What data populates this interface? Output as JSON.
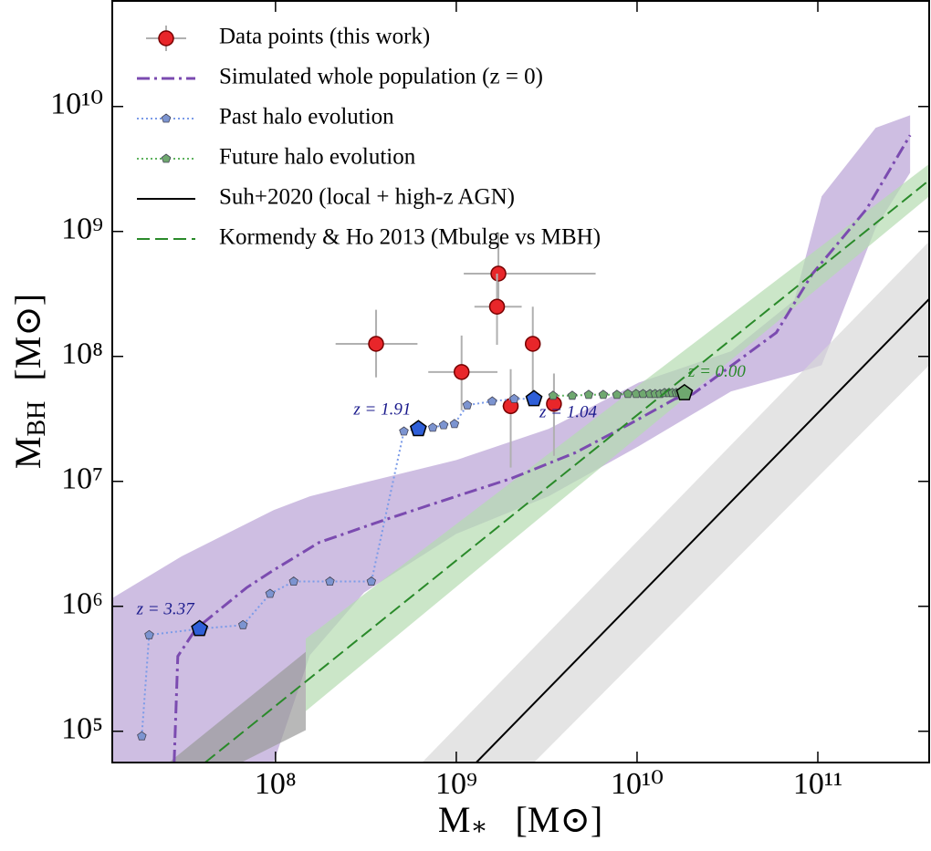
{
  "chart_data": {
    "type": "scatter",
    "xscale": "log",
    "yscale": "log",
    "xlabel": [
      "M",
      "∗",
      "[M⊙]"
    ],
    "ylabel": [
      "M",
      "BH",
      "[M⊙]"
    ],
    "xlim": [
      12500000.0,
      413000000000.0
    ],
    "ylim": [
      56200.0,
      70000000000.0
    ],
    "xticks": [
      {
        "value": 100000000.0,
        "label": "10⁸"
      },
      {
        "value": 1000000000.0,
        "label": "10⁹"
      },
      {
        "value": 10000000000.0,
        "label": "10¹⁰"
      },
      {
        "value": 100000000000.0,
        "label": "10¹¹"
      }
    ],
    "yticks": [
      {
        "value": 100000.0,
        "label": "10⁵"
      },
      {
        "value": 1000000.0,
        "label": "10⁶"
      },
      {
        "value": 10000000.0,
        "label": "10⁷"
      },
      {
        "value": 100000000.0,
        "label": "10⁸"
      },
      {
        "value": 1000000000.0,
        "label": "10⁹"
      },
      {
        "value": 10000000000.0,
        "label": "10¹⁰"
      }
    ],
    "legend": "upper left",
    "series": [
      {
        "name": "Data points (this work)",
        "kind": "errorbar",
        "color": "#e8262a",
        "error_color": "#b0b0b0",
        "x": [
          360000000.0,
          1070000000.0,
          1710000000.0,
          1680000000.0,
          2650000000.0,
          2000000000.0,
          3470000000.0
        ],
        "values": [
          126000000.0,
          75000000.0,
          460000000.0,
          250000000.0,
          126000000.0,
          40000000.0,
          41700000.0
        ],
        "xmin": [
          215000000.0,
          700000000.0,
          1100000000.0,
          1260000000.0,
          2450000000.0,
          1800000000.0,
          3200000000.0
        ],
        "xmax": [
          610000000.0,
          1690000000.0,
          5900000000.0,
          2300000000.0,
          2850000000.0,
          2200000000.0,
          3750000000.0
        ],
        "ymin": [
          68000000.0,
          37000000.0,
          217000000.0,
          124000000.0,
          44000000.0,
          12900000.0,
          16000000.0
        ],
        "ymax": [
          236000000.0,
          147000000.0,
          980000000.0,
          460000000.0,
          250000000.0,
          79000000.0,
          73000000.0
        ]
      },
      {
        "name": "Simulated whole population (z = 0)",
        "kind": "line",
        "style": "dashdot",
        "color": "#7b4bb0",
        "x": [
          27500000.0,
          28800000.0,
          36300000.0,
          69200000.0,
          97700000.0,
          174000000.0,
          398000000.0,
          1000000000.0,
          2000000000.0,
          4570000000.0,
          9120000000.0,
          16200000000.0,
          20400000000.0,
          58900000000.0,
          93300000000.0,
          186000000000.0,
          324000000000.0
        ],
        "values": [
          56200.0,
          398000.0,
          661000.0,
          1410000.0,
          1950000.0,
          3240000.0,
          4900000.0,
          7590000.0,
          10500000.0,
          17000000.0,
          28800000.0,
          45700000.0,
          50100000.0,
          155000000.0,
          457000000.0,
          1510000000.0,
          5890000000.0
        ],
        "bands": [
          {
            "color": "#b9a3d6",
            "upper": {
              "x": [
                12600000.0,
                30200000.0,
                97700000.0,
                155000000.0,
                309000000.0,
                1000000000.0,
                3240000000.0,
                10200000000.0,
                33100000000.0,
                74100000000.0,
                105000000000.0,
                209000000000.0,
                324000000000.0
              ],
              "y": [
                1170000.0,
                2510000.0,
                5890000.0,
                7590000.0,
                9770000.0,
                14800000.0,
                26300000.0,
                61700000.0,
                110000000.0,
                282000000.0,
                1910000000.0,
                6760000000.0,
                8510000000.0
              ]
            },
            "lower": {
              "x": [
                12600000.0,
                30200000.0,
                97700000.0,
                155000000.0,
                309000000.0,
                1000000000.0,
                3240000000.0,
                10200000000.0,
                33100000000.0,
                74100000000.0,
                105000000000.0,
                209000000000.0,
                324000000000.0
              ],
              "y": [
                56200.0,
                56200.0,
                56200.0,
                407000.0,
                1290000.0,
                3800000.0,
                7590000.0,
                19100000.0,
                52500000.0,
                72400000.0,
                85100000.0,
                1070000000.0,
                2950000000.0
              ]
            }
          }
        ]
      },
      {
        "name": "Past halo evolution",
        "kind": "markers-line",
        "style": "dotted",
        "color": "#7b9be8",
        "marker_color": "#7c94d0",
        "highlight_color": "#2f5fd8",
        "label_color": "#1a1a8c",
        "x": [
          18200000.0,
          20000000.0,
          38000000.0,
          66100000.0,
          93300000.0,
          126000000.0,
          200000000.0,
          339000000.0,
          513000000.0,
          617000000.0,
          741000000.0,
          851000000.0,
          977000000.0,
          1150000000.0,
          1580000000.0,
          2090000000.0,
          2690000000.0
        ],
        "values": [
          91200.0,
          589000.0,
          661000.0,
          708000.0,
          1260000.0,
          1580000.0,
          1580000.0,
          1580000.0,
          25100000.0,
          26300000.0,
          26900000.0,
          28200000.0,
          28800000.0,
          40700000.0,
          43700000.0,
          45700000.0,
          45700000.0
        ],
        "labels": [
          null,
          null,
          "z = 3.37",
          null,
          null,
          null,
          null,
          null,
          null,
          "z = 1.91",
          null,
          null,
          null,
          null,
          null,
          null,
          "z = 1.04"
        ]
      },
      {
        "name": "Future halo evolution",
        "kind": "markers-line",
        "style": "dotted",
        "color": "#5fb35f",
        "marker_color": "#6fa86f",
        "highlight_color": "#6fa86f",
        "label_color": "#2a8a2a",
        "x": [
          3430000000.0,
          4380000000.0,
          5400000000.0,
          6500000000.0,
          7740000000.0,
          8900000000.0,
          9880000000.0,
          10800000000.0,
          11800000000.0,
          12600000000.0,
          13400000000.0,
          14200000000.0,
          15000000000.0,
          15700000000.0,
          16500000000.0,
          17100000000.0,
          17700000000.0,
          18300000000.0
        ],
        "values": [
          48500000.0,
          48500000.0,
          49300000.0,
          49300000.0,
          49300000.0,
          50100000.0,
          50100000.0,
          50100000.0,
          50100000.0,
          50100000.0,
          50100000.0,
          51000000.0,
          51000000.0,
          51000000.0,
          51000000.0,
          51000000.0,
          51000000.0,
          51000000.0
        ],
        "labels": [
          null,
          null,
          null,
          null,
          null,
          null,
          null,
          null,
          null,
          null,
          null,
          null,
          null,
          null,
          null,
          null,
          null,
          "z = 0.00"
        ]
      },
      {
        "name": "Suh+2020 (local + high-z AGN)",
        "kind": "line",
        "style": "solid",
        "color": "#000000",
        "x": [
          1290000000.0,
          413000000000.0
        ],
        "values": [
          56200.0,
          288000000.0
        ],
        "bands": [
          {
            "color": "#d9d9d9",
            "upper": {
              "x": [
                646000000.0,
                413000000000.0
              ],
              "y": [
                56200.0,
                832000000.0
              ]
            },
            "lower": {
              "x": [
                2690000000.0,
                413000000000.0
              ],
              "y": [
                56200.0,
                85100000.0
              ]
            }
          }
        ]
      },
      {
        "name": "Kormendy & Ho 2013 (Mbulge vs MBH)",
        "kind": "line",
        "style": "dashed",
        "color": "#2a8a2a",
        "x": [
          40800000.0,
          413000000000.0
        ],
        "values": [
          56200.0,
          2570000000.0
        ],
        "bands": [
          {
            "color": "#b5dcb0",
            "upper": {
              "x": [
                147000000.0,
                413000000000.0
              ],
              "y": [
                550000.0,
                3470000000.0
              ]
            },
            "lower": {
              "x": [
                147000000.0,
                413000000000.0
              ],
              "y": [
                145000.0,
                1910000000.0
              ]
            }
          },
          {
            "color": "#9a9a9a",
            "upper": {
              "x": [
                25700000.0,
                147000000.0
              ],
              "y": [
                56200.0,
                432000.0
              ]
            },
            "lower": {
              "x": [
                64600000.0,
                147000000.0
              ],
              "y": [
                56200.0,
                102000.0
              ]
            }
          }
        ]
      }
    ]
  }
}
